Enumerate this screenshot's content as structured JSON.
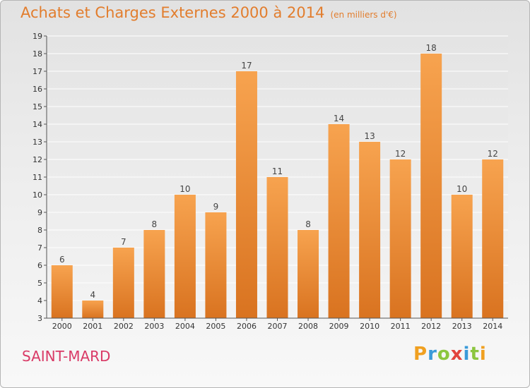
{
  "header": {
    "title": "Achats et Charges Externes 2000 à 2014",
    "unit": "(en milliers d'€)"
  },
  "footer": {
    "place": "SAINT-MARD",
    "brand": "Proxiti"
  },
  "colors": {
    "title": "#e27d2d",
    "place": "#d93a66",
    "bar_light": "#f7a34f",
    "bar_dark": "#d97320"
  },
  "chart_data": {
    "type": "bar",
    "categories": [
      "2000",
      "2001",
      "2002",
      "2003",
      "2004",
      "2005",
      "2006",
      "2007",
      "2008",
      "2009",
      "2010",
      "2011",
      "2012",
      "2013",
      "2014"
    ],
    "values": [
      6,
      4,
      7,
      8,
      10,
      9,
      17,
      11,
      8,
      14,
      13,
      12,
      18,
      10,
      12
    ],
    "title": "Achats et Charges Externes 2000 à 2014",
    "subtitle": "(en milliers d'€)",
    "xlabel": "",
    "ylabel": "",
    "ylim": [
      3,
      19
    ],
    "yticks": [
      3,
      4,
      5,
      6,
      7,
      8,
      9,
      10,
      11,
      12,
      13,
      14,
      15,
      16,
      17,
      18,
      19
    ],
    "grid": true,
    "data_labels": true
  }
}
